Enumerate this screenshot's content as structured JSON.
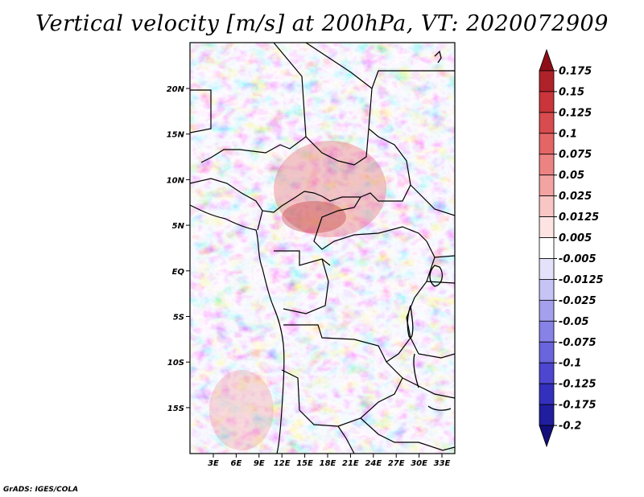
{
  "title": "Vertical velocity [m/s] at 200hPa, VT: 2020072909",
  "credit": "GrADS: IGES/COLA",
  "lat_labels": [
    "20N",
    "15N",
    "10N",
    "5N",
    "EQ",
    "5S",
    "10S",
    "15S"
  ],
  "lon_labels": [
    "3E",
    "6E",
    "9E",
    "12E",
    "15E",
    "18E",
    "21E",
    "24E",
    "27E",
    "30E",
    "33E"
  ],
  "colorbar": {
    "labels": [
      "0.175",
      "0.15",
      "0.125",
      "0.1",
      "0.075",
      "0.05",
      "0.025",
      "0.0125",
      "0.005",
      "-0.005",
      "-0.0125",
      "-0.025",
      "-0.05",
      "-0.075",
      "-0.1",
      "-0.125",
      "-0.175",
      "-0.2"
    ],
    "colors": [
      "#8e0f17",
      "#b0222a",
      "#c9353a",
      "#d84b4e",
      "#e46566",
      "#ec8383",
      "#f2a3a2",
      "#f8c6c5",
      "#fde4e3",
      "#ffffff",
      "#e4e1fb",
      "#c6c3f5",
      "#a5a0ed",
      "#8682e6",
      "#6a64dd",
      "#4c46d0",
      "#3330bd",
      "#201e9e",
      "#130f7a"
    ]
  }
}
